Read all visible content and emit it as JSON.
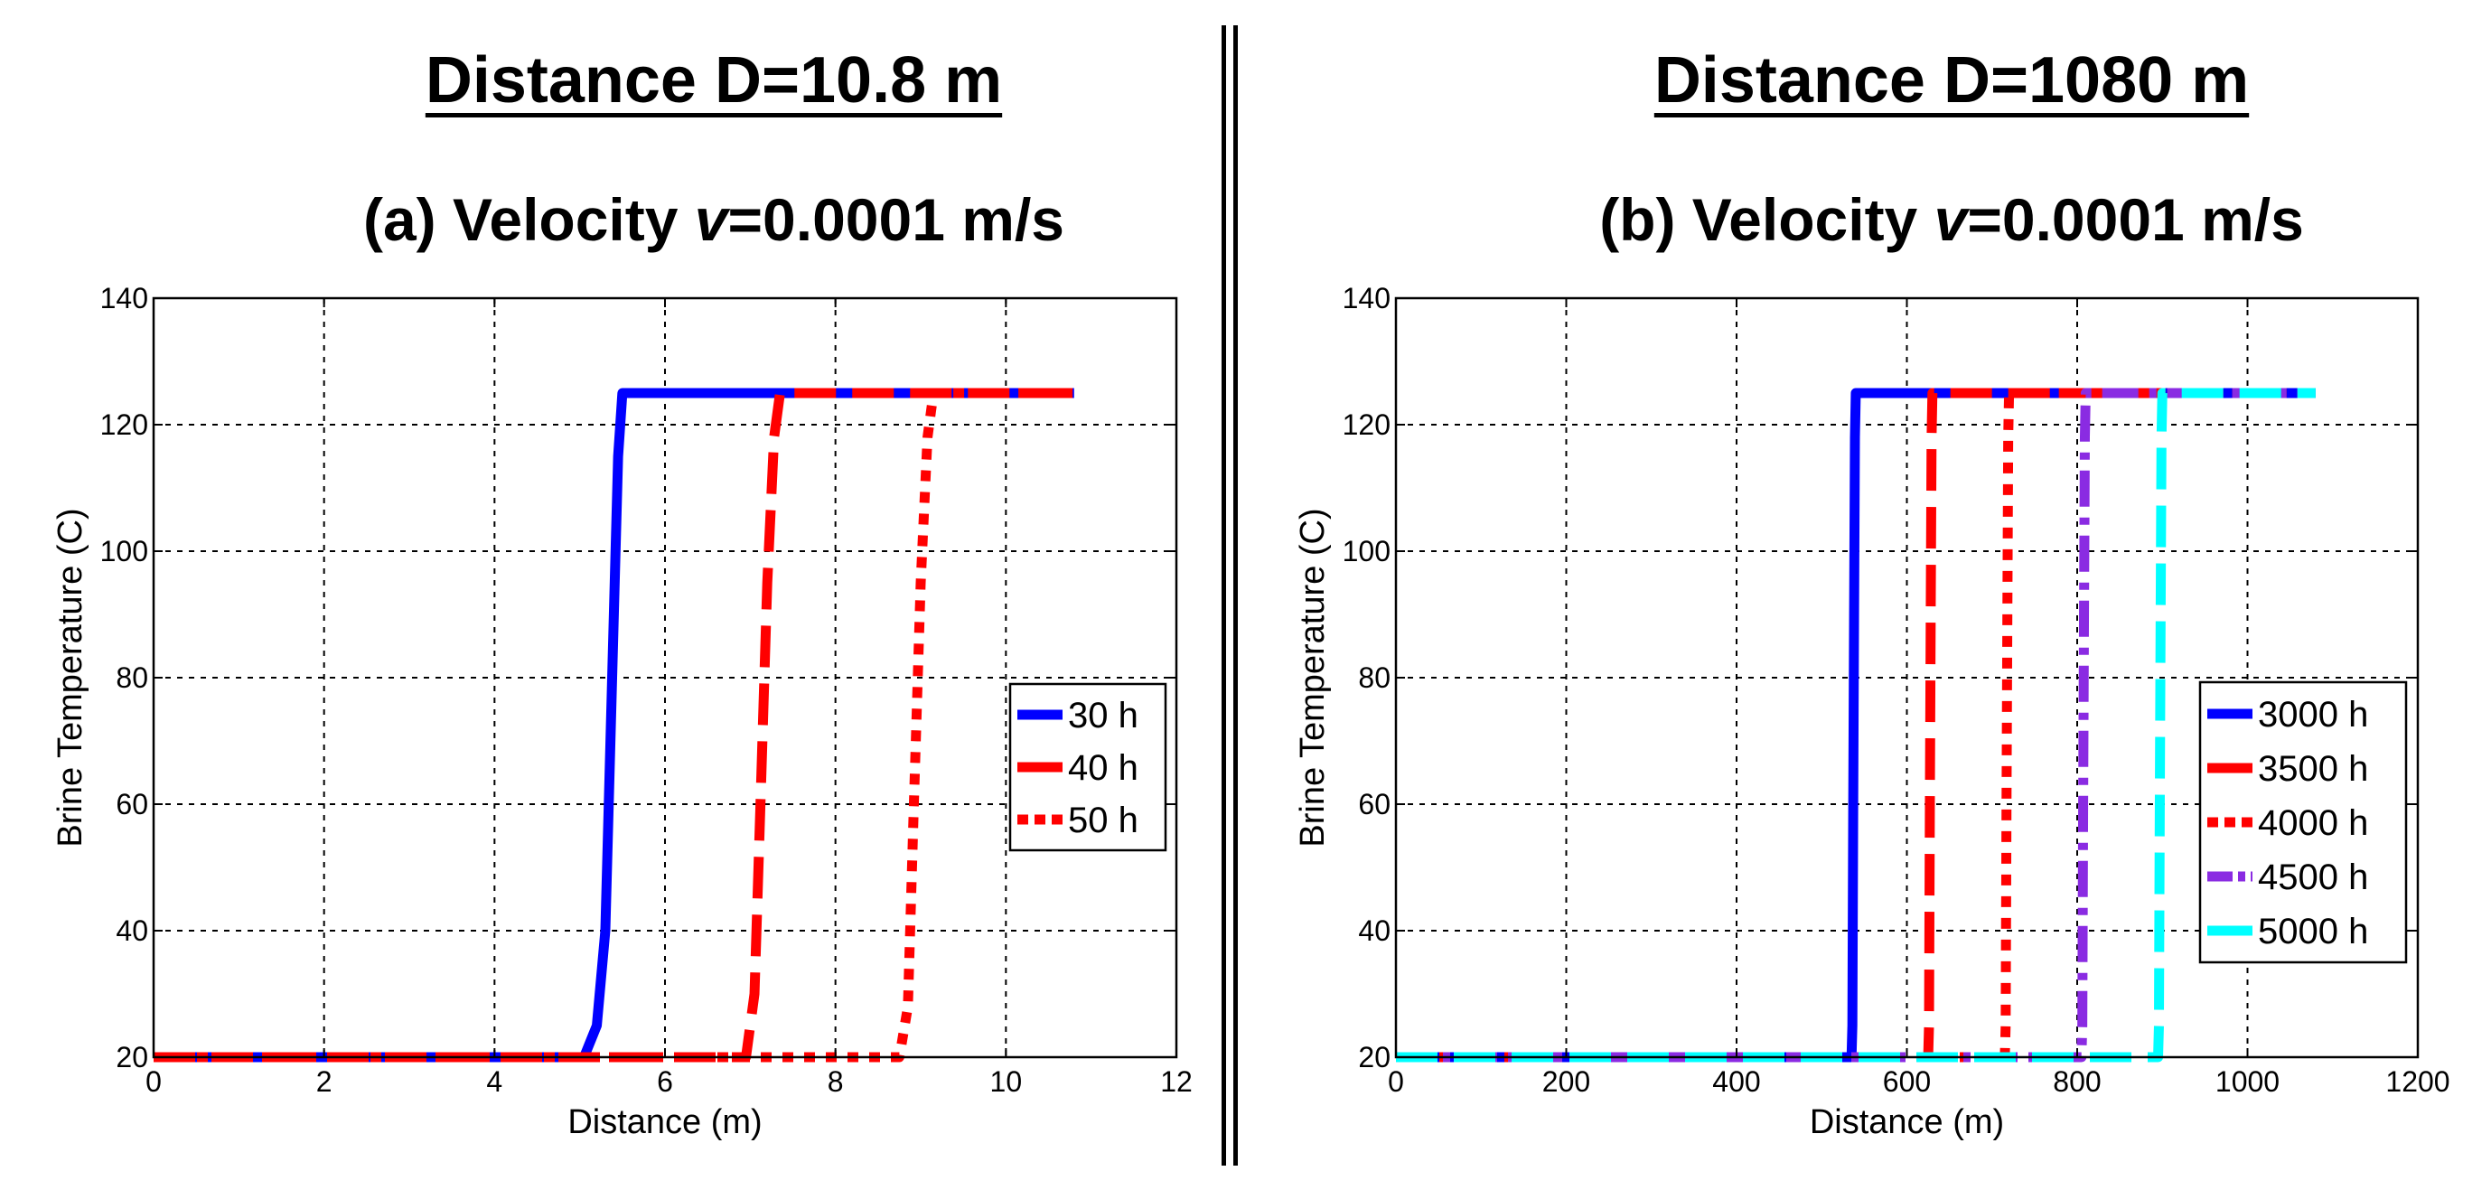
{
  "headings": {
    "left_main": "Distance  D=10.8  m",
    "left_sub_prefix": "(a) Velocity ",
    "left_sub_var": "v",
    "left_sub_suffix": "=0.0001 m/s",
    "right_main": "Distance  D=1080  m",
    "right_sub_prefix": "(b) Velocity ",
    "right_sub_var": "v",
    "right_sub_suffix": "=0.0001 m/s"
  },
  "colors": {
    "blue": "#0000ff",
    "red": "#ff0000",
    "purple": "#8a2be2",
    "cyan": "#00ffff",
    "grid": "#000000"
  },
  "chart_data": [
    {
      "type": "line",
      "title": "(a) Velocity v=0.0001 m/s",
      "xlabel": "Distance (m)",
      "ylabel": "Brine Temperature (C)",
      "xlim": [
        0,
        12
      ],
      "ylim": [
        20,
        140
      ],
      "xticks": [
        0,
        2,
        4,
        6,
        8,
        10,
        12
      ],
      "yticks": [
        20,
        40,
        60,
        80,
        100,
        120,
        140
      ],
      "grid": true,
      "legend_position": "right-middle",
      "series": [
        {
          "name": "30 h",
          "color": "#0000ff",
          "style": "solid",
          "x": [
            0,
            5.05,
            5.2,
            5.3,
            5.38,
            5.45,
            5.5,
            10.8
          ],
          "y": [
            20,
            20,
            25,
            40,
            80,
            115,
            125,
            125
          ]
        },
        {
          "name": "40 h",
          "color": "#ff0000",
          "style": "dashed",
          "x": [
            0,
            6.95,
            7.05,
            7.12,
            7.2,
            7.28,
            7.35,
            10.8
          ],
          "y": [
            20,
            20,
            30,
            60,
            95,
            118,
            125,
            125
          ]
        },
        {
          "name": "50 h",
          "color": "#ff0000",
          "style": "dotted",
          "x": [
            0,
            8.75,
            8.85,
            8.92,
            9.0,
            9.08,
            9.15,
            10.8
          ],
          "y": [
            20,
            20,
            28,
            60,
            95,
            118,
            125,
            125
          ]
        }
      ]
    },
    {
      "type": "line",
      "title": "(b) Velocity v=0.0001 m/s",
      "xlabel": "Distance (m)",
      "ylabel": "Brine Temperature (C)",
      "xlim": [
        0,
        1200
      ],
      "ylim": [
        20,
        140
      ],
      "xticks": [
        0,
        200,
        400,
        600,
        800,
        1000,
        1200
      ],
      "yticks": [
        20,
        40,
        60,
        80,
        100,
        120,
        140
      ],
      "grid": true,
      "legend_position": "right-bottom",
      "series": [
        {
          "name": "3000 h",
          "color": "#0000ff",
          "style": "solid",
          "x": [
            0,
            535,
            536,
            537,
            538,
            539,
            540,
            1080
          ],
          "y": [
            20,
            20,
            25,
            60,
            90,
            118,
            125,
            125
          ]
        },
        {
          "name": "3500 h",
          "color": "#ff0000",
          "style": "dashed",
          "x": [
            0,
            625,
            626,
            627,
            628,
            629,
            630,
            1080
          ],
          "y": [
            20,
            20,
            25,
            60,
            90,
            118,
            125,
            125
          ]
        },
        {
          "name": "4000 h",
          "color": "#ff0000",
          "style": "dotted",
          "x": [
            0,
            715,
            716,
            717,
            718,
            719,
            720,
            1080
          ],
          "y": [
            20,
            20,
            25,
            60,
            90,
            118,
            125,
            125
          ]
        },
        {
          "name": "4500 h",
          "color": "#8a2be2",
          "style": "dashdot",
          "x": [
            0,
            805,
            806,
            807,
            808,
            809,
            810,
            1080
          ],
          "y": [
            20,
            20,
            25,
            60,
            90,
            118,
            125,
            125
          ]
        },
        {
          "name": "5000 h",
          "color": "#00ffff",
          "style": "dashed",
          "x": [
            0,
            895,
            896,
            897,
            898,
            899,
            900,
            1080
          ],
          "y": [
            20,
            20,
            25,
            60,
            90,
            118,
            125,
            125
          ]
        }
      ]
    }
  ]
}
